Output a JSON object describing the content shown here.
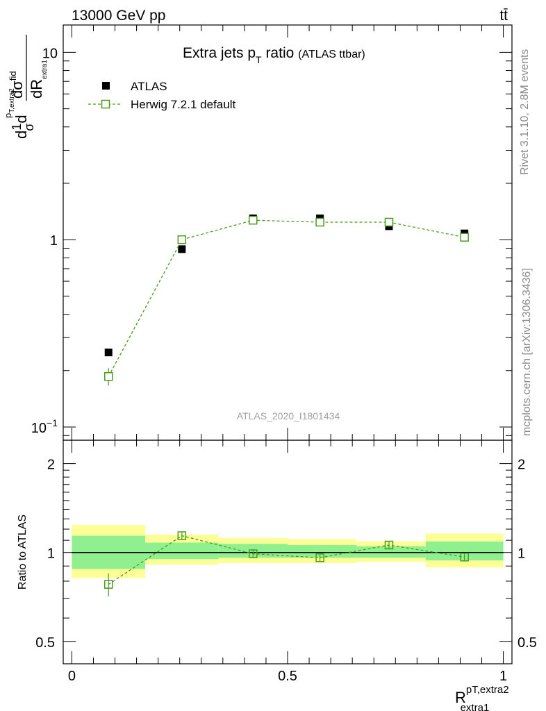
{
  "header": {
    "energy_label": "13000 GeV pp",
    "process_label": "tt̄"
  },
  "side_text": {
    "rivet": "Rivet 3.1.10,  2.8M events",
    "source": "mcplots.cern.ch [arXiv:1306.3436]"
  },
  "chart_data": [
    {
      "panel": "main",
      "type": "scatter",
      "title": "Extra jets p",
      "title_sub": "T",
      "title_rest": " ratio",
      "title_note": "(ATLAS ttbar)",
      "analysis_label": "ATLAS_2020_I1801434",
      "ylabel_parts": {
        "d1": "d",
        "one": "1",
        "sigma": "σ",
        "d2": "d",
        "num": "dσ",
        "num_sup": "fid",
        "sub_p": "p",
        "sub_text": "T,extra2",
        "den": "dR",
        "den_sub": "extra1"
      },
      "y_scale": "log",
      "ylim": [
        0.085,
        14
      ],
      "xlim": [
        -0.02,
        1.02
      ],
      "y_tick_labels": [
        {
          "value": 0.1,
          "base": "10",
          "exp": "−1"
        },
        {
          "value": 1,
          "base": "1",
          "exp": ""
        },
        {
          "value": 10,
          "base": "10",
          "exp": ""
        }
      ],
      "legend_placement": "top-left",
      "series": [
        {
          "name": "ATLAS",
          "style": "markers",
          "color": "#000000",
          "x": [
            0.085,
            0.255,
            0.42,
            0.575,
            0.735,
            0.91
          ],
          "y": [
            0.25,
            0.89,
            1.3,
            1.3,
            1.18,
            1.08
          ],
          "yerr": [
            0.01,
            0.03,
            0.04,
            0.04,
            0.04,
            0.04
          ]
        },
        {
          "name": "Herwig 7.2.1 default",
          "style": "open-square-dashed",
          "color": "#4a9a1e",
          "x": [
            0.085,
            0.255,
            0.42,
            0.575,
            0.735,
            0.91
          ],
          "y": [
            0.186,
            1.0,
            1.27,
            1.24,
            1.24,
            1.03
          ],
          "yerr": [
            0.02,
            0.03,
            0.03,
            0.03,
            0.03,
            0.03
          ]
        }
      ]
    },
    {
      "panel": "ratio",
      "type": "scatter",
      "ylabel": "Ratio to ATLAS",
      "xlabel_parts": {
        "base": "R",
        "sup": "pT,extra2",
        "sub": "extra1"
      },
      "ylim": [
        0.42,
        2.4
      ],
      "xlim": [
        -0.02,
        1.02
      ],
      "y_ticks": [
        0.5,
        1,
        2
      ],
      "y_tick_labels": [
        "0.5",
        "1",
        "2"
      ],
      "x_ticks": [
        0,
        0.5,
        1
      ],
      "x_tick_labels": [
        "0",
        "0.5",
        "1"
      ],
      "bands": [
        {
          "x0": 0.0,
          "x1": 0.17,
          "inner": [
            0.88,
            1.14
          ],
          "outer": [
            0.82,
            1.24
          ]
        },
        {
          "x0": 0.17,
          "x1": 0.34,
          "inner": [
            0.95,
            1.08
          ],
          "outer": [
            0.91,
            1.15
          ]
        },
        {
          "x0": 0.34,
          "x1": 0.5,
          "inner": [
            0.96,
            1.07
          ],
          "outer": [
            0.92,
            1.12
          ]
        },
        {
          "x0": 0.5,
          "x1": 0.66,
          "inner": [
            0.96,
            1.06
          ],
          "outer": [
            0.92,
            1.11
          ]
        },
        {
          "x0": 0.66,
          "x1": 0.82,
          "inner": [
            0.96,
            1.05
          ],
          "outer": [
            0.93,
            1.09
          ]
        },
        {
          "x0": 0.82,
          "x1": 1.0,
          "inner": [
            0.94,
            1.09
          ],
          "outer": [
            0.89,
            1.16
          ]
        }
      ],
      "band_colors": {
        "inner": "#90f090",
        "outer": "#fefe96"
      },
      "series": [
        {
          "name": "Herwig 7.2.1 default",
          "color": "#4a9a1e",
          "x": [
            0.085,
            0.255,
            0.42,
            0.575,
            0.735,
            0.91
          ],
          "y": [
            0.78,
            1.14,
            0.99,
            0.96,
            1.06,
            0.965
          ],
          "yerr": [
            0.07,
            0.03,
            0.03,
            0.03,
            0.03,
            0.03
          ]
        }
      ]
    }
  ]
}
